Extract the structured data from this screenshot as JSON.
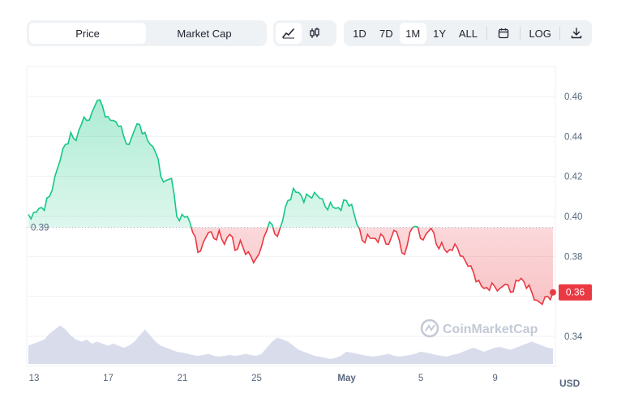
{
  "toolbar": {
    "metric_tabs": [
      {
        "label": "Price",
        "active": true
      },
      {
        "label": "Market Cap",
        "active": false
      }
    ],
    "chart_type_buttons": [
      {
        "icon": "line-chart-icon",
        "active": true
      },
      {
        "icon": "candlestick-icon",
        "active": false
      }
    ],
    "range_buttons": [
      {
        "label": "1D",
        "active": false
      },
      {
        "label": "7D",
        "active": false
      },
      {
        "label": "1M",
        "active": true
      },
      {
        "label": "1Y",
        "active": false
      },
      {
        "label": "ALL",
        "active": false
      }
    ],
    "calendar_icon": "calendar-icon",
    "log_label": "LOG",
    "download_icon": "download-icon"
  },
  "currency_label": "USD",
  "watermark": "CoinMarketCap",
  "colors": {
    "up": "#16c784",
    "down": "#ea3943",
    "volume": "#cfd3e6",
    "grid": "#eff2f5"
  },
  "chart_data": {
    "type": "line",
    "x_ticks": [
      "13",
      "17",
      "21",
      "25",
      "May",
      "5",
      "9"
    ],
    "y_ticks": [
      "0.34",
      "0.36",
      "0.38",
      "0.40",
      "0.42",
      "0.44",
      "0.46"
    ],
    "ylim": [
      0.325,
      0.475
    ],
    "reference_value": 0.3945,
    "reference_label": "0.39",
    "current_value": 0.362,
    "current_label": "0.36",
    "series": [
      {
        "values": [
          0.401,
          0.402,
          0.404,
          0.403,
          0.41,
          0.42,
          0.428,
          0.436,
          0.442,
          0.438,
          0.446,
          0.448,
          0.452,
          0.458,
          0.455,
          0.45,
          0.448,
          0.445,
          0.44,
          0.436,
          0.443,
          0.446,
          0.442,
          0.436,
          0.432,
          0.42,
          0.418,
          0.419,
          0.4,
          0.401,
          0.4,
          0.392,
          0.382,
          0.387,
          0.392,
          0.389,
          0.393,
          0.386,
          0.391,
          0.383,
          0.388,
          0.381,
          0.38,
          0.379,
          0.385,
          0.393,
          0.396,
          0.39,
          0.398,
          0.408,
          0.414,
          0.412,
          0.407,
          0.41,
          0.412,
          0.409,
          0.405,
          0.407,
          0.404,
          0.403,
          0.408,
          0.406,
          0.396,
          0.388,
          0.391,
          0.389,
          0.387,
          0.39,
          0.386,
          0.393,
          0.388,
          0.381,
          0.392,
          0.395,
          0.389,
          0.391,
          0.394,
          0.386,
          0.387,
          0.382,
          0.383,
          0.384,
          0.38,
          0.375,
          0.372,
          0.368,
          0.364,
          0.363,
          0.365,
          0.364,
          0.366,
          0.362,
          0.368,
          0.369,
          0.364,
          0.362,
          0.358,
          0.356,
          0.36,
          0.362
        ]
      }
    ],
    "volume": [
      0.45,
      0.5,
      0.55,
      0.6,
      0.75,
      0.85,
      0.95,
      0.85,
      0.7,
      0.6,
      0.55,
      0.6,
      0.5,
      0.55,
      0.5,
      0.45,
      0.5,
      0.45,
      0.4,
      0.45,
      0.55,
      0.7,
      0.85,
      0.7,
      0.55,
      0.45,
      0.4,
      0.35,
      0.3,
      0.28,
      0.25,
      0.22,
      0.2,
      0.22,
      0.25,
      0.2,
      0.18,
      0.2,
      0.22,
      0.2,
      0.22,
      0.25,
      0.22,
      0.2,
      0.25,
      0.4,
      0.55,
      0.65,
      0.6,
      0.55,
      0.45,
      0.35,
      0.3,
      0.25,
      0.2,
      0.18,
      0.15,
      0.12,
      0.15,
      0.2,
      0.3,
      0.28,
      0.25,
      0.22,
      0.2,
      0.18,
      0.2,
      0.22,
      0.25,
      0.2,
      0.18,
      0.2,
      0.22,
      0.25,
      0.3,
      0.28,
      0.25,
      0.22,
      0.2,
      0.18,
      0.22,
      0.25,
      0.3,
      0.35,
      0.4,
      0.35,
      0.3,
      0.35,
      0.4,
      0.42,
      0.38,
      0.35,
      0.4,
      0.45,
      0.5,
      0.55,
      0.5,
      0.45,
      0.4,
      0.38
    ]
  }
}
